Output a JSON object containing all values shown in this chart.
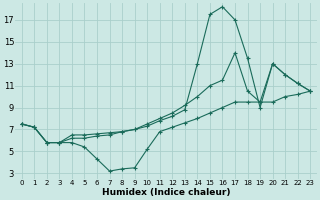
{
  "xlabel": "Humidex (Indice chaleur)",
  "bg_color": "#cce8e4",
  "grid_color": "#aacfcb",
  "line_color": "#1a6b5a",
  "xlim": [
    -0.5,
    23.5
  ],
  "ylim": [
    2.5,
    18.5
  ],
  "xticks": [
    0,
    1,
    2,
    3,
    4,
    5,
    6,
    7,
    8,
    9,
    10,
    11,
    12,
    13,
    14,
    15,
    16,
    17,
    18,
    19,
    20,
    21,
    22,
    23
  ],
  "yticks": [
    3,
    5,
    7,
    9,
    11,
    13,
    15,
    17
  ],
  "line1_x": [
    0,
    1,
    2,
    3,
    4,
    5,
    6,
    7,
    8,
    9,
    10,
    11,
    12,
    13,
    14,
    15,
    16,
    17,
    18,
    19,
    20,
    21,
    22,
    23
  ],
  "line1_y": [
    7.5,
    7.2,
    5.8,
    5.8,
    5.8,
    5.4,
    4.3,
    3.2,
    3.4,
    3.5,
    5.2,
    6.8,
    7.2,
    7.6,
    8.0,
    8.5,
    9.0,
    9.5,
    9.5,
    9.5,
    9.5,
    10.0,
    10.2,
    10.5
  ],
  "line2_x": [
    0,
    1,
    2,
    3,
    4,
    5,
    6,
    7,
    8,
    9,
    10,
    11,
    12,
    13,
    14,
    15,
    16,
    17,
    18,
    19,
    20,
    21,
    22,
    23
  ],
  "line2_y": [
    7.5,
    7.2,
    5.8,
    5.8,
    6.5,
    6.5,
    6.6,
    6.7,
    6.8,
    7.0,
    7.3,
    7.8,
    8.2,
    8.8,
    13.0,
    17.5,
    18.2,
    17.0,
    13.5,
    9.0,
    13.0,
    12.0,
    11.2,
    10.5
  ],
  "line3_x": [
    0,
    1,
    2,
    3,
    4,
    5,
    6,
    7,
    8,
    9,
    10,
    11,
    12,
    13,
    14,
    15,
    16,
    17,
    18,
    19,
    20,
    21,
    22,
    23
  ],
  "line3_y": [
    7.5,
    7.2,
    5.8,
    5.8,
    6.2,
    6.2,
    6.4,
    6.5,
    6.8,
    7.0,
    7.5,
    8.0,
    8.5,
    9.2,
    10.0,
    11.0,
    11.5,
    14.0,
    10.5,
    9.5,
    13.0,
    12.0,
    11.2,
    10.5
  ]
}
